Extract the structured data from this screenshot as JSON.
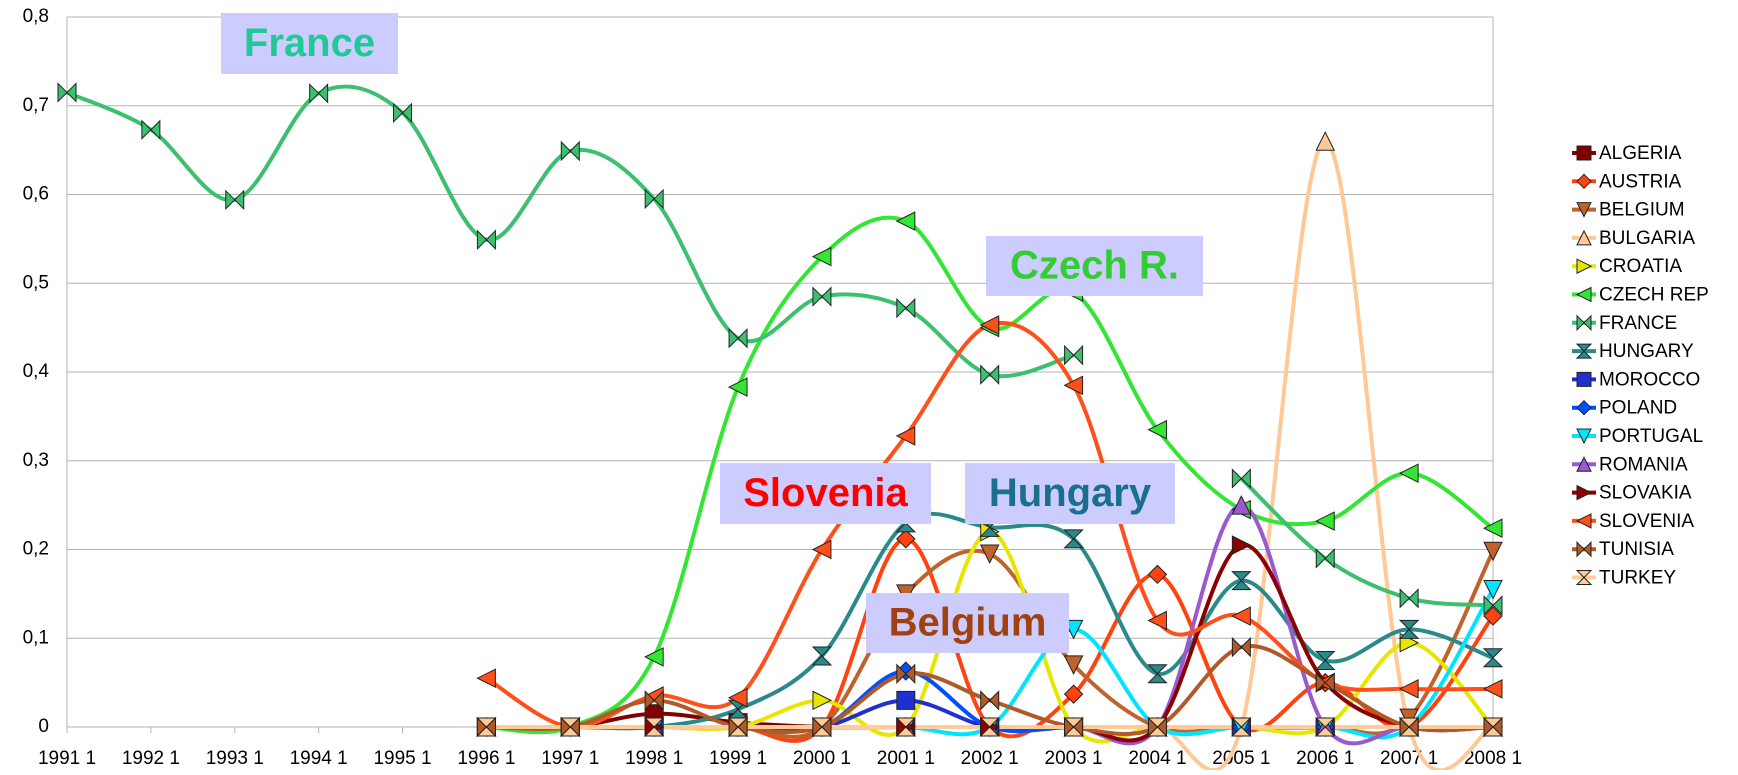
{
  "chart_data": {
    "type": "line",
    "smooth": true,
    "grid": true,
    "legend": "right",
    "categories": [
      "1991 1",
      "1992 1",
      "1993 1",
      "1994 1",
      "1995 1",
      "1996 1",
      "1997 1",
      "1998 1",
      "1999 1",
      "2000 1",
      "2001 1",
      "2002 1",
      "2003 1",
      "2004 1",
      "2005 1",
      "2006 1",
      "2007 1",
      "2008 1"
    ],
    "ylim": [
      0,
      0.8
    ],
    "yticks": [
      0,
      {
        "value": 0.1,
        "label": "0,1"
      },
      {
        "value": 0.2,
        "label": "0,2"
      },
      {
        "value": 0.3,
        "label": "0,3"
      },
      {
        "value": 0.4,
        "label": "0,4"
      },
      {
        "value": 0.5,
        "label": "0,5"
      },
      {
        "value": 0.6,
        "label": "0,6"
      },
      {
        "value": 0.7,
        "label": "0,7"
      },
      {
        "value": 0.8,
        "label": "0,8"
      }
    ],
    "series": [
      {
        "name": "ALGERIA",
        "color": "#800000",
        "marker": "square",
        "values": [
          null,
          null,
          null,
          null,
          null,
          0,
          0,
          0.015,
          0.005,
          0,
          0,
          0,
          0,
          0,
          0,
          0,
          0,
          0
        ]
      },
      {
        "name": "AUSTRIA",
        "color": "#ff420e",
        "marker": "diamond",
        "values": [
          null,
          null,
          null,
          null,
          null,
          0,
          0,
          0,
          0,
          0,
          0.212,
          0,
          0.037,
          0.172,
          0,
          0.05,
          0,
          0.125
        ]
      },
      {
        "name": "BELGIUM",
        "color": "#c0622b",
        "marker": "down",
        "values": [
          null,
          null,
          null,
          null,
          null,
          0,
          0,
          0,
          0,
          0,
          0.15,
          0.195,
          0.07,
          0,
          0,
          0,
          0.01,
          0.198
        ]
      },
      {
        "name": "BULGARIA",
        "color": "#ffc896",
        "marker": "up",
        "values": [
          null,
          null,
          null,
          null,
          null,
          0,
          0,
          0,
          0,
          0,
          0,
          0,
          0,
          0,
          0,
          0.66,
          0,
          0
        ]
      },
      {
        "name": "CROATIA",
        "color": "#e6e600",
        "marker": "right",
        "values": [
          null,
          null,
          null,
          null,
          null,
          0,
          0,
          0,
          0,
          0.03,
          0,
          0.22,
          0,
          0,
          0,
          0,
          0.095,
          0
        ]
      },
      {
        "name": "CZECH REP",
        "color": "#33e633",
        "marker": "left",
        "values": [
          null,
          null,
          null,
          null,
          null,
          0,
          0,
          0.079,
          0.383,
          0.53,
          0.57,
          0.45,
          0.49,
          0.335,
          0.245,
          0.232,
          0.286,
          0.224
        ]
      },
      {
        "name": "FRANCE",
        "color": "#3cbf6e",
        "marker": "bowtie",
        "values": [
          0.715,
          0.673,
          0.594,
          0.714,
          0.692,
          0.549,
          0.649,
          0.595,
          0.438,
          0.485,
          0.472,
          0.397,
          0.419,
          null,
          0.28,
          0.19,
          0.145,
          0.137
        ]
      },
      {
        "name": "HUNGARY",
        "color": "#2a8a8a",
        "marker": "hourglass",
        "values": [
          null,
          null,
          null,
          null,
          null,
          0,
          0,
          0,
          0.02,
          0.08,
          0.23,
          0.225,
          0.212,
          0.06,
          0.165,
          0.075,
          0.11,
          0.078
        ]
      },
      {
        "name": "MOROCCO",
        "color": "#2030d0",
        "marker": "square",
        "values": [
          null,
          null,
          null,
          null,
          null,
          0,
          0,
          0,
          0,
          0,
          0.03,
          0,
          0,
          0,
          0,
          0,
          0,
          0
        ]
      },
      {
        "name": "POLAND",
        "color": "#0050ff",
        "marker": "diamond",
        "values": [
          null,
          null,
          null,
          null,
          null,
          0,
          0,
          0,
          0,
          0,
          0.063,
          0,
          0,
          0,
          0,
          0,
          0,
          0
        ]
      },
      {
        "name": "PORTUGAL",
        "color": "#00e5ff",
        "marker": "down",
        "values": [
          null,
          null,
          null,
          null,
          null,
          0,
          0,
          0,
          0,
          0,
          0,
          0,
          0.11,
          0,
          0,
          0,
          0,
          0.155
        ]
      },
      {
        "name": "ROMANIA",
        "color": "#9b59d0",
        "marker": "up",
        "values": [
          null,
          null,
          null,
          null,
          null,
          0,
          0,
          0,
          0,
          0,
          0,
          0,
          0,
          0,
          0.25,
          0,
          0,
          0
        ]
      },
      {
        "name": "SLOVAKIA",
        "color": "#8b0000",
        "marker": "right",
        "values": [
          null,
          null,
          null,
          null,
          null,
          0,
          0,
          0,
          0,
          0,
          0,
          0,
          0,
          0,
          0.205,
          0.05,
          0,
          0
        ]
      },
      {
        "name": "SLOVENIA",
        "color": "#ff4f1a",
        "marker": "left",
        "values": [
          null,
          null,
          null,
          null,
          null,
          0.055,
          0,
          0.035,
          0.033,
          0.2,
          0.328,
          0.453,
          0.385,
          0.12,
          0.125,
          0.05,
          0.043,
          0.043
        ]
      },
      {
        "name": "TUNISIA",
        "color": "#b05a2a",
        "marker": "bowtie",
        "values": [
          null,
          null,
          null,
          null,
          null,
          0,
          0,
          0.03,
          0,
          0,
          0.06,
          0.03,
          0,
          0,
          0.09,
          0.05,
          0,
          0
        ]
      },
      {
        "name": "TURKEY",
        "color": "#ffcc99",
        "marker": "hourglass",
        "values": [
          null,
          null,
          null,
          null,
          null,
          0,
          0,
          0,
          0,
          0,
          0,
          0,
          0,
          0,
          0,
          0,
          0,
          0
        ]
      }
    ],
    "annotations": [
      {
        "text": "France",
        "color": "#20c997"
      },
      {
        "text": "Czech R.",
        "color": "#33cc33"
      },
      {
        "text": "Slovenia",
        "color": "#ff0000"
      },
      {
        "text": "Hungary",
        "color": "#1a6e8e"
      },
      {
        "text": "Belgium",
        "color": "#a0420f"
      }
    ]
  }
}
